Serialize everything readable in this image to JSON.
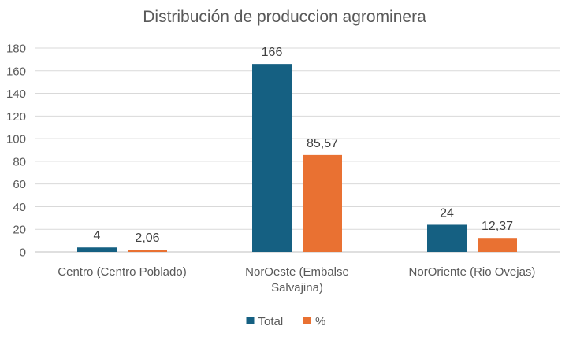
{
  "chart_data": {
    "type": "bar",
    "title": "Distribución de produccion agrominera",
    "categories": [
      "Centro (Centro Poblado)",
      "NorOeste (Embalse Salvajina)",
      "NorOriente (Rio Ovejas)"
    ],
    "category_lines": [
      [
        "Centro (Centro Poblado)"
      ],
      [
        "NorOeste (Embalse",
        "Salvajina)"
      ],
      [
        "NorOriente (Rio Ovejas)"
      ]
    ],
    "series": [
      {
        "name": "Total",
        "values": [
          4,
          166,
          24
        ],
        "labels": [
          "4",
          "166",
          "24"
        ],
        "color": "#156082"
      },
      {
        "name": "%",
        "values": [
          2.06,
          85.57,
          12.37
        ],
        "labels": [
          "2,06",
          "85,57",
          "12,37"
        ],
        "color": "#E97132"
      }
    ],
    "ylim": [
      0,
      180
    ],
    "yticks": [
      0,
      20,
      40,
      60,
      80,
      100,
      120,
      140,
      160,
      180
    ],
    "xlabel": "",
    "ylabel": "",
    "grid": true,
    "legend": "bottom"
  }
}
